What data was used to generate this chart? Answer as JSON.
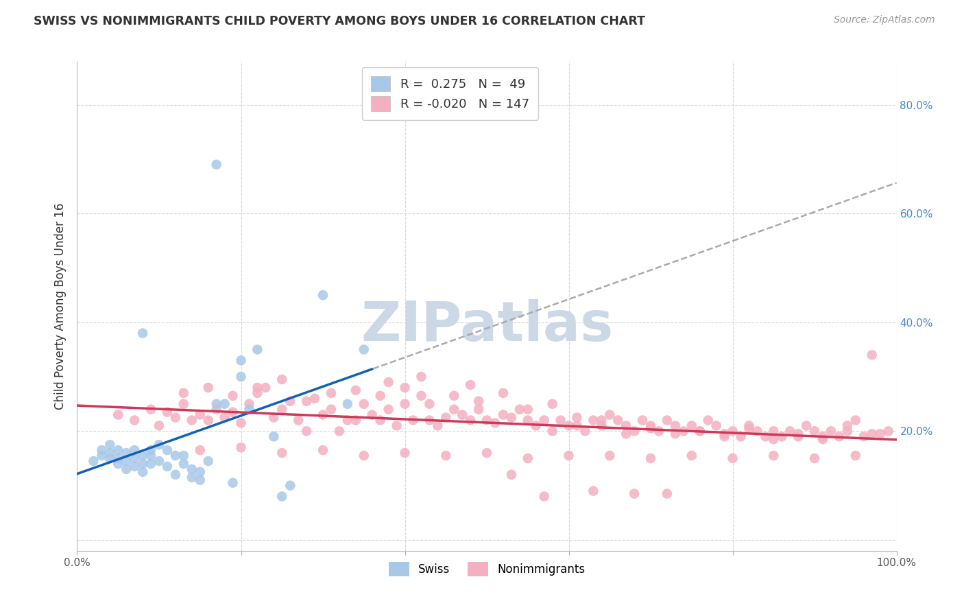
{
  "title": "SWISS VS NONIMMIGRANTS CHILD POVERTY AMONG BOYS UNDER 16 CORRELATION CHART",
  "source": "Source: ZipAtlas.com",
  "ylabel": "Child Poverty Among Boys Under 16",
  "xlim": [
    0.0,
    1.0
  ],
  "ylim": [
    -0.02,
    0.88
  ],
  "swiss_R": 0.275,
  "swiss_N": 49,
  "nonimm_R": -0.02,
  "nonimm_N": 147,
  "swiss_color": "#a8c8e8",
  "nonimm_color": "#f4b0c0",
  "swiss_line_color": "#1060b8",
  "nonimm_line_color": "#d03858",
  "gray_dash_color": "#aaaaaa",
  "watermark_color": "#ccd8e5",
  "grid_color": "#cccccc",
  "title_color": "#333333",
  "source_color": "#999999",
  "ytick_color": "#4488cc",
  "xtick_color": "#555555",
  "swiss_x": [
    0.02,
    0.03,
    0.03,
    0.04,
    0.04,
    0.04,
    0.05,
    0.05,
    0.05,
    0.06,
    0.06,
    0.06,
    0.07,
    0.07,
    0.07,
    0.08,
    0.08,
    0.08,
    0.09,
    0.09,
    0.09,
    0.1,
    0.1,
    0.11,
    0.11,
    0.12,
    0.12,
    0.13,
    0.13,
    0.14,
    0.14,
    0.15,
    0.15,
    0.16,
    0.17,
    0.18,
    0.19,
    0.2,
    0.21,
    0.22,
    0.24,
    0.25,
    0.26,
    0.3,
    0.33,
    0.35,
    0.08,
    0.17,
    0.2
  ],
  "swiss_y": [
    0.145,
    0.155,
    0.165,
    0.15,
    0.16,
    0.175,
    0.14,
    0.15,
    0.165,
    0.13,
    0.145,
    0.16,
    0.135,
    0.15,
    0.165,
    0.125,
    0.14,
    0.155,
    0.14,
    0.155,
    0.165,
    0.145,
    0.175,
    0.135,
    0.165,
    0.12,
    0.155,
    0.14,
    0.155,
    0.115,
    0.13,
    0.11,
    0.125,
    0.145,
    0.25,
    0.25,
    0.105,
    0.3,
    0.24,
    0.35,
    0.19,
    0.08,
    0.1,
    0.45,
    0.25,
    0.35,
    0.38,
    0.69,
    0.33
  ],
  "nonimm_x": [
    0.05,
    0.07,
    0.09,
    0.1,
    0.11,
    0.12,
    0.13,
    0.14,
    0.15,
    0.16,
    0.17,
    0.18,
    0.19,
    0.2,
    0.21,
    0.22,
    0.23,
    0.24,
    0.25,
    0.26,
    0.27,
    0.28,
    0.29,
    0.3,
    0.31,
    0.32,
    0.33,
    0.34,
    0.35,
    0.36,
    0.37,
    0.38,
    0.39,
    0.4,
    0.41,
    0.42,
    0.43,
    0.44,
    0.45,
    0.46,
    0.47,
    0.48,
    0.49,
    0.5,
    0.51,
    0.52,
    0.53,
    0.54,
    0.55,
    0.56,
    0.57,
    0.58,
    0.59,
    0.6,
    0.61,
    0.62,
    0.63,
    0.64,
    0.65,
    0.66,
    0.67,
    0.68,
    0.69,
    0.7,
    0.71,
    0.72,
    0.73,
    0.74,
    0.75,
    0.76,
    0.77,
    0.78,
    0.79,
    0.8,
    0.81,
    0.82,
    0.83,
    0.84,
    0.85,
    0.86,
    0.87,
    0.88,
    0.89,
    0.9,
    0.91,
    0.92,
    0.93,
    0.94,
    0.95,
    0.96,
    0.97,
    0.98,
    0.99,
    0.13,
    0.16,
    0.19,
    0.22,
    0.25,
    0.28,
    0.31,
    0.34,
    0.37,
    0.4,
    0.43,
    0.46,
    0.49,
    0.52,
    0.55,
    0.58,
    0.61,
    0.64,
    0.67,
    0.7,
    0.73,
    0.76,
    0.79,
    0.82,
    0.85,
    0.88,
    0.91,
    0.94,
    0.97,
    0.15,
    0.2,
    0.25,
    0.3,
    0.35,
    0.4,
    0.45,
    0.5,
    0.55,
    0.6,
    0.65,
    0.7,
    0.75,
    0.8,
    0.85,
    0.9,
    0.95,
    0.38,
    0.42,
    0.48,
    0.53,
    0.57,
    0.63,
    0.68,
    0.72
  ],
  "nonimm_y": [
    0.23,
    0.22,
    0.24,
    0.21,
    0.235,
    0.225,
    0.25,
    0.22,
    0.23,
    0.22,
    0.24,
    0.225,
    0.235,
    0.215,
    0.25,
    0.27,
    0.28,
    0.225,
    0.24,
    0.255,
    0.22,
    0.2,
    0.26,
    0.23,
    0.24,
    0.2,
    0.22,
    0.22,
    0.25,
    0.23,
    0.22,
    0.24,
    0.21,
    0.25,
    0.22,
    0.265,
    0.22,
    0.21,
    0.225,
    0.24,
    0.23,
    0.22,
    0.24,
    0.22,
    0.215,
    0.23,
    0.225,
    0.24,
    0.22,
    0.21,
    0.22,
    0.2,
    0.22,
    0.21,
    0.21,
    0.2,
    0.22,
    0.21,
    0.23,
    0.22,
    0.21,
    0.2,
    0.22,
    0.21,
    0.2,
    0.22,
    0.21,
    0.2,
    0.21,
    0.2,
    0.22,
    0.21,
    0.19,
    0.2,
    0.19,
    0.21,
    0.2,
    0.19,
    0.2,
    0.19,
    0.2,
    0.19,
    0.21,
    0.2,
    0.19,
    0.2,
    0.19,
    0.21,
    0.22,
    0.19,
    0.34,
    0.195,
    0.2,
    0.27,
    0.28,
    0.265,
    0.28,
    0.295,
    0.255,
    0.27,
    0.275,
    0.265,
    0.28,
    0.25,
    0.265,
    0.255,
    0.27,
    0.24,
    0.25,
    0.225,
    0.22,
    0.195,
    0.205,
    0.195,
    0.2,
    0.195,
    0.205,
    0.185,
    0.195,
    0.185,
    0.2,
    0.195,
    0.165,
    0.17,
    0.16,
    0.165,
    0.155,
    0.16,
    0.155,
    0.16,
    0.15,
    0.155,
    0.155,
    0.15,
    0.155,
    0.15,
    0.155,
    0.15,
    0.155,
    0.29,
    0.3,
    0.285,
    0.12,
    0.08,
    0.09,
    0.085,
    0.085
  ]
}
